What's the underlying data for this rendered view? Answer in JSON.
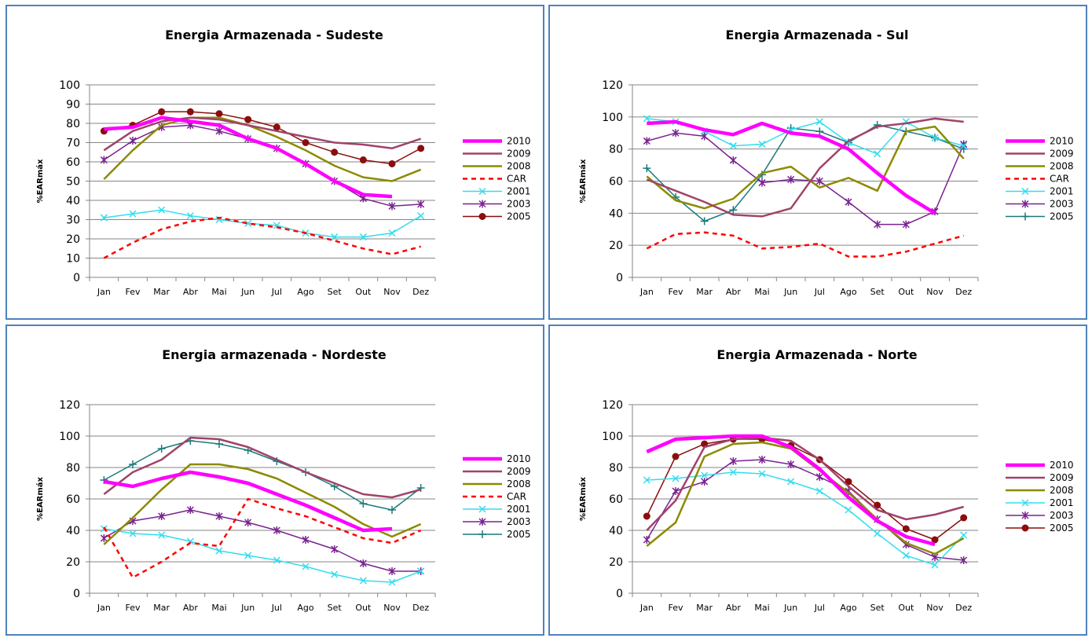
{
  "months": [
    "Jan",
    "Fev",
    "Mar",
    "Abr",
    "Mai",
    "Jun",
    "Jul",
    "Ago",
    "Set",
    "Out",
    "Nov",
    "Dez"
  ],
  "y_axis_label": "%EARmáx",
  "series_styles": {
    "2010": {
      "color": "#ff00ff",
      "width": 4.5,
      "dash": "",
      "marker": "none"
    },
    "2009": {
      "color": "#a0436a",
      "width": 2.5,
      "dash": "",
      "marker": "none"
    },
    "2008": {
      "color": "#8b8b00",
      "width": 2.5,
      "dash": "",
      "marker": "none"
    },
    "CAR": {
      "color": "#ff0000",
      "width": 2.5,
      "dash": "6,5",
      "marker": "none"
    },
    "2001": {
      "color": "#33ddee",
      "width": 1.5,
      "dash": "",
      "marker": "x"
    },
    "2003": {
      "color": "#7a2290",
      "width": 1.5,
      "dash": "",
      "marker": "star"
    },
    "2005": {
      "color": "#8b0d0d",
      "width": 1.5,
      "dash": "",
      "marker": "circle"
    },
    "2005b": {
      "color": "#1a7a7a",
      "width": 1.5,
      "dash": "",
      "marker": "plus"
    }
  },
  "chart_data": [
    {
      "type": "line",
      "title": "Energia Armazenada - Sudeste",
      "ylabel": "%EARmáx",
      "ylim": [
        0,
        100
      ],
      "yticks": [
        0,
        10,
        20,
        30,
        40,
        50,
        60,
        70,
        80,
        90,
        100
      ],
      "grid": true,
      "legend": "right",
      "categories": [
        "Jan",
        "Fev",
        "Mar",
        "Abr",
        "Mai",
        "Jun",
        "Jul",
        "Ago",
        "Set",
        "Out",
        "Nov",
        "Dez"
      ],
      "series": [
        {
          "name": "2010",
          "style": "2010",
          "values": [
            77,
            78,
            83,
            81,
            79,
            72,
            67,
            59,
            50,
            43,
            42,
            null
          ]
        },
        {
          "name": "2009",
          "style": "2009",
          "values": [
            66,
            76,
            81,
            83,
            82,
            79,
            76,
            73,
            70,
            69,
            67,
            72
          ]
        },
        {
          "name": "2008",
          "style": "2008",
          "values": [
            51,
            66,
            79,
            83,
            83,
            79,
            73,
            66,
            58,
            52,
            50,
            56
          ]
        },
        {
          "name": "CAR",
          "style": "CAR",
          "values": [
            10,
            18,
            25,
            29,
            31,
            28,
            26,
            23,
            19,
            15,
            12,
            16
          ]
        },
        {
          "name": "2001",
          "style": "2001",
          "values": [
            31,
            33,
            35,
            32,
            30,
            28,
            27,
            23,
            21,
            21,
            23,
            32
          ]
        },
        {
          "name": "2003",
          "style": "2003",
          "values": [
            61,
            71,
            78,
            79,
            76,
            72,
            67,
            59,
            50,
            41,
            37,
            38
          ]
        },
        {
          "name": "2005",
          "style": "2005",
          "values": [
            76,
            79,
            86,
            86,
            85,
            82,
            78,
            70,
            65,
            61,
            59,
            67
          ]
        }
      ]
    },
    {
      "type": "line",
      "title": "Energia Armazenada - Sul",
      "ylabel": "%EARmáx",
      "ylim": [
        0,
        120
      ],
      "yticks": [
        0,
        20,
        40,
        60,
        80,
        100,
        120
      ],
      "grid": true,
      "legend": "right",
      "categories": [
        "Jan",
        "Fev",
        "Mar",
        "Abr",
        "Mai",
        "Jun",
        "Jul",
        "Ago",
        "Set",
        "Out",
        "Nov",
        "Dez"
      ],
      "series": [
        {
          "name": "2010",
          "style": "2010",
          "values": [
            96,
            97,
            92,
            89,
            96,
            90,
            88,
            80,
            65,
            51,
            40,
            null
          ]
        },
        {
          "name": "2009",
          "style": "2009",
          "values": [
            61,
            54,
            47,
            39,
            38,
            43,
            68,
            85,
            94,
            96,
            99,
            97
          ]
        },
        {
          "name": "2008",
          "style": "2008",
          "values": [
            63,
            48,
            43,
            49,
            65,
            69,
            56,
            62,
            54,
            91,
            94,
            74
          ]
        },
        {
          "name": "CAR",
          "style": "CAR",
          "values": [
            18,
            27,
            28,
            26,
            18,
            19,
            21,
            13,
            13,
            16,
            21,
            26
          ]
        },
        {
          "name": "2001",
          "style": "2001",
          "values": [
            99,
            97,
            91,
            82,
            83,
            92,
            97,
            84,
            77,
            97,
            87,
            82
          ]
        },
        {
          "name": "2003",
          "style": "2003",
          "values": [
            85,
            90,
            88,
            73,
            59,
            61,
            60,
            47,
            33,
            33,
            41,
            83
          ]
        },
        {
          "name": "2005",
          "style": "2005b",
          "values": [
            68,
            50,
            35,
            42,
            64,
            93,
            91,
            84,
            95,
            91,
            87,
            80
          ]
        }
      ]
    },
    {
      "type": "line",
      "title": "Energia armazenada - Nordeste",
      "ylabel": "%EARmáx",
      "ylim": [
        0,
        120
      ],
      "yticks": [
        0,
        20,
        40,
        60,
        80,
        100,
        120
      ],
      "grid": true,
      "legend": "right",
      "categories": [
        "Jan",
        "Fev",
        "Mar",
        "Abr",
        "Mai",
        "Jun",
        "Jul",
        "Ago",
        "Set",
        "Out",
        "Nov",
        "Dez"
      ],
      "series": [
        {
          "name": "2010",
          "style": "2010",
          "values": [
            71,
            68,
            73,
            77,
            74,
            70,
            63,
            56,
            48,
            40,
            41,
            null
          ]
        },
        {
          "name": "2009",
          "style": "2009",
          "values": [
            63,
            77,
            85,
            99,
            98,
            93,
            85,
            77,
            70,
            63,
            61,
            66
          ]
        },
        {
          "name": "2008",
          "style": "2008",
          "values": [
            31,
            48,
            66,
            82,
            82,
            79,
            73,
            64,
            55,
            44,
            36,
            44
          ]
        },
        {
          "name": "CAR",
          "style": "CAR",
          "values": [
            42,
            10,
            20,
            32,
            30,
            60,
            54,
            49,
            42,
            35,
            32,
            40
          ]
        },
        {
          "name": "2001",
          "style": "2001",
          "values": [
            41,
            38,
            37,
            33,
            27,
            24,
            21,
            17,
            12,
            8,
            7,
            14
          ]
        },
        {
          "name": "2003",
          "style": "2003",
          "values": [
            35,
            46,
            49,
            53,
            49,
            45,
            40,
            34,
            28,
            19,
            14,
            14
          ]
        },
        {
          "name": "2005",
          "style": "2005b",
          "values": [
            72,
            82,
            92,
            97,
            95,
            91,
            84,
            77,
            68,
            57,
            53,
            67
          ]
        }
      ]
    },
    {
      "type": "line",
      "title": "Energia Armazenada - Norte",
      "ylabel": "%EARmáx",
      "ylim": [
        0,
        120
      ],
      "yticks": [
        0,
        20,
        40,
        60,
        80,
        100,
        120
      ],
      "grid": true,
      "legend": "right",
      "categories": [
        "Jan",
        "Fev",
        "Mar",
        "Abr",
        "Mai",
        "Jun",
        "Jul",
        "Ago",
        "Set",
        "Out",
        "Nov",
        "Dez"
      ],
      "series": [
        {
          "name": "2010",
          "style": "2010",
          "values": [
            90,
            98,
            99,
            100,
            100,
            93,
            79,
            61,
            46,
            36,
            31,
            null
          ]
        },
        {
          "name": "2009",
          "style": "2009",
          "values": [
            40,
            59,
            93,
            98,
            99,
            97,
            85,
            68,
            53,
            47,
            50,
            55
          ]
        },
        {
          "name": "2008",
          "style": "2008",
          "values": [
            30,
            45,
            87,
            95,
            96,
            92,
            78,
            64,
            47,
            32,
            25,
            35
          ]
        },
        {
          "name": "2001",
          "style": "2001",
          "values": [
            72,
            73,
            75,
            77,
            76,
            71,
            65,
            53,
            38,
            24,
            18,
            37
          ]
        },
        {
          "name": "2003",
          "style": "2003",
          "values": [
            34,
            65,
            71,
            84,
            85,
            82,
            74,
            65,
            47,
            31,
            23,
            21
          ]
        },
        {
          "name": "2005",
          "style": "2005",
          "values": [
            49,
            87,
            95,
            98,
            98,
            94,
            85,
            71,
            56,
            41,
            34,
            48
          ]
        }
      ]
    }
  ]
}
